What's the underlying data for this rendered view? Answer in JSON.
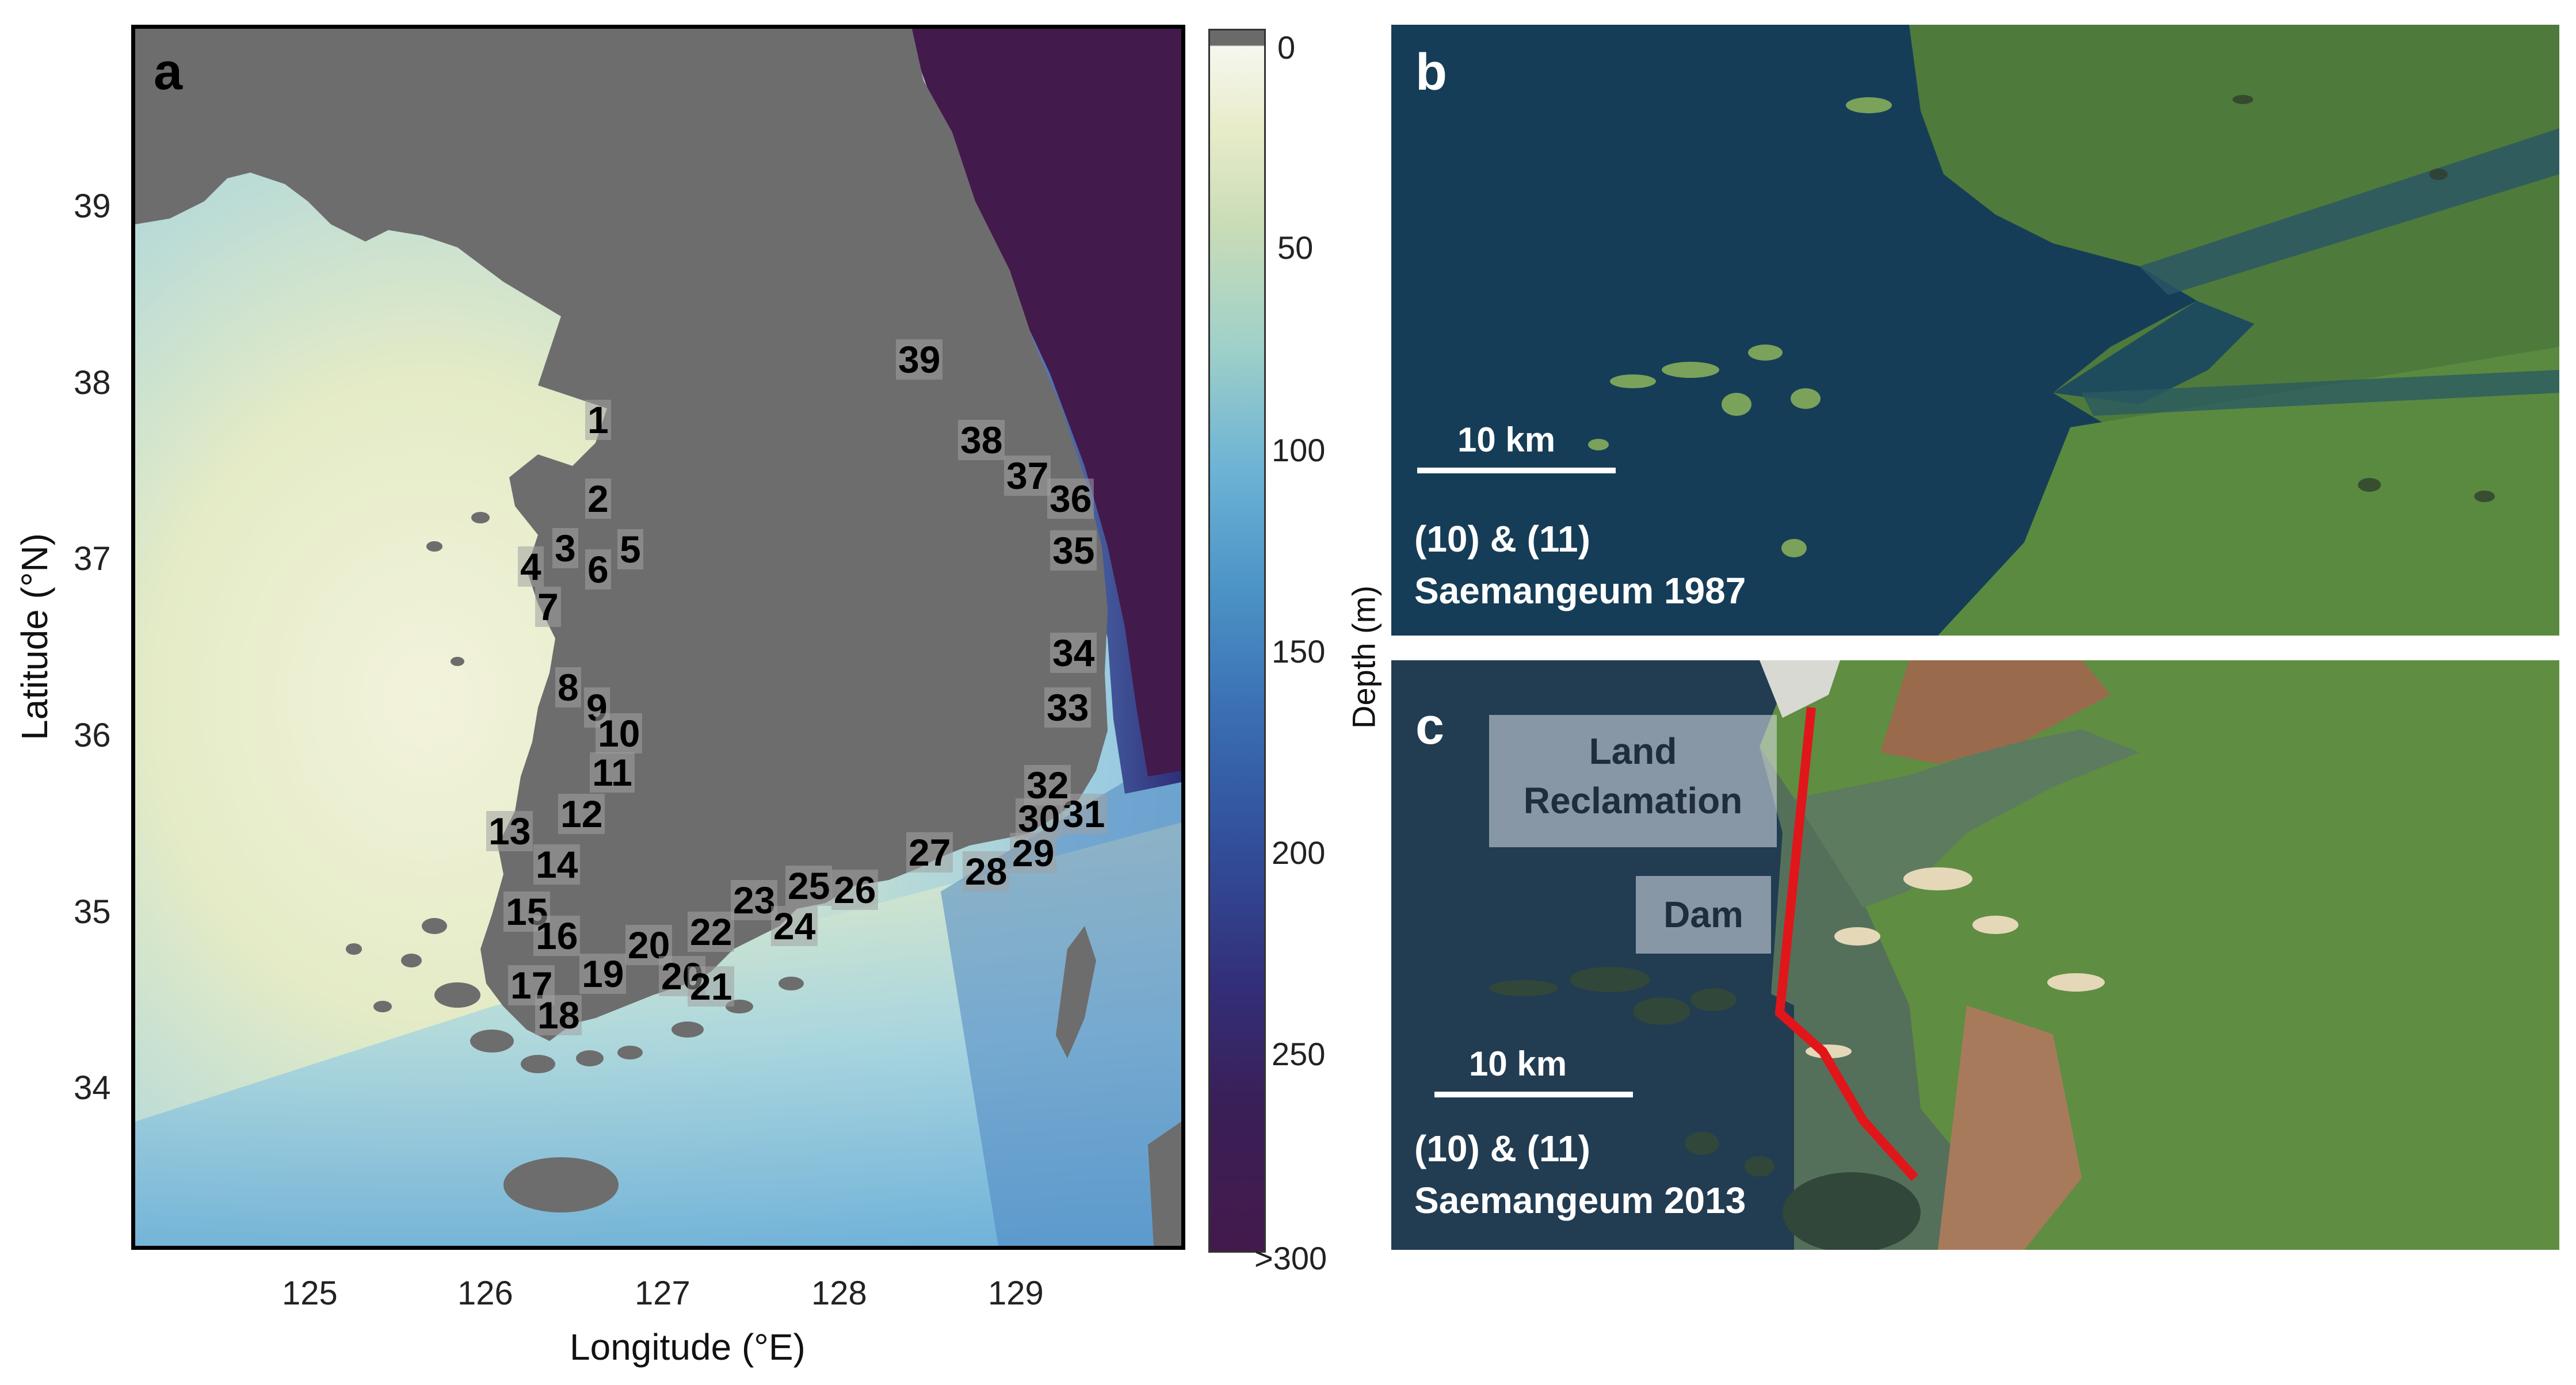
{
  "panel_a": {
    "letter": "a",
    "x_axis": {
      "title": "Longitude (°E)",
      "ticks": [
        "125",
        "126",
        "127",
        "128",
        "129"
      ]
    },
    "y_axis": {
      "title": "Latitude (°N)",
      "ticks": [
        "39",
        "38",
        "37",
        "36",
        "35",
        "34"
      ]
    },
    "colorbar": {
      "title": "Depth (m)",
      "ticks": [
        "0",
        "50",
        "100",
        "150",
        "200",
        "250",
        ">300"
      ]
    },
    "site_labels": [
      "1",
      "2",
      "3",
      "4",
      "5",
      "6",
      "7",
      "8",
      "9",
      "10",
      "11",
      "12",
      "13",
      "14",
      "15",
      "16",
      "17",
      "18",
      "19",
      "20",
      "20",
      "21",
      "22",
      "23",
      "24",
      "25",
      "26",
      "27",
      "28",
      "29",
      "30",
      "31",
      "32",
      "33",
      "34",
      "35",
      "36",
      "37",
      "38",
      "39"
    ]
  },
  "panel_b": {
    "letter": "b",
    "scale": "10 km",
    "caption_line1": "(10) & (11)",
    "caption_line2": "Saemangeum 1987"
  },
  "panel_c": {
    "letter": "c",
    "box1_line1": "Land",
    "box1_line2": "Reclamation",
    "box2": "Dam",
    "scale": "10 km",
    "caption_line1": "(10) & (11)",
    "caption_line2": "Saemangeum 2013"
  },
  "colors": {
    "land": "#6d6d6d",
    "deep_sea": "#431a4c",
    "dam_line": "#e0161b"
  }
}
